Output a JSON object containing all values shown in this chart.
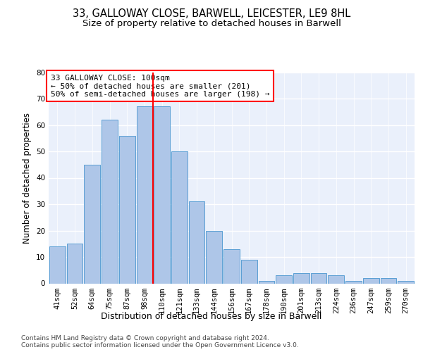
{
  "title1": "33, GALLOWAY CLOSE, BARWELL, LEICESTER, LE9 8HL",
  "title2": "Size of property relative to detached houses in Barwell",
  "xlabel": "Distribution of detached houses by size in Barwell",
  "ylabel": "Number of detached properties",
  "categories": [
    "41sqm",
    "52sqm",
    "64sqm",
    "75sqm",
    "87sqm",
    "98sqm",
    "110sqm",
    "121sqm",
    "133sqm",
    "144sqm",
    "156sqm",
    "167sqm",
    "178sqm",
    "190sqm",
    "201sqm",
    "213sqm",
    "224sqm",
    "236sqm",
    "247sqm",
    "259sqm",
    "270sqm"
  ],
  "values": [
    14,
    15,
    45,
    62,
    56,
    67,
    67,
    50,
    31,
    20,
    13,
    9,
    1,
    3,
    4,
    4,
    3,
    1,
    2,
    2,
    1
  ],
  "bar_color": "#aec6e8",
  "bar_edge_color": "#5a9fd4",
  "vline_x": 5.5,
  "vline_color": "red",
  "annotation_lines": [
    "33 GALLOWAY CLOSE: 100sqm",
    "← 50% of detached houses are smaller (201)",
    "50% of semi-detached houses are larger (198) →"
  ],
  "annotation_box_color": "white",
  "annotation_box_edge_color": "red",
  "ylim": [
    0,
    80
  ],
  "yticks": [
    0,
    10,
    20,
    30,
    40,
    50,
    60,
    70,
    80
  ],
  "background_color": "#eaf0fb",
  "grid_color": "white",
  "footer": "Contains HM Land Registry data © Crown copyright and database right 2024.\nContains public sector information licensed under the Open Government Licence v3.0.",
  "title_fontsize": 10.5,
  "subtitle_fontsize": 9.5,
  "xlabel_fontsize": 9,
  "ylabel_fontsize": 8.5,
  "tick_fontsize": 7.5,
  "annotation_fontsize": 8,
  "footer_fontsize": 6.5
}
